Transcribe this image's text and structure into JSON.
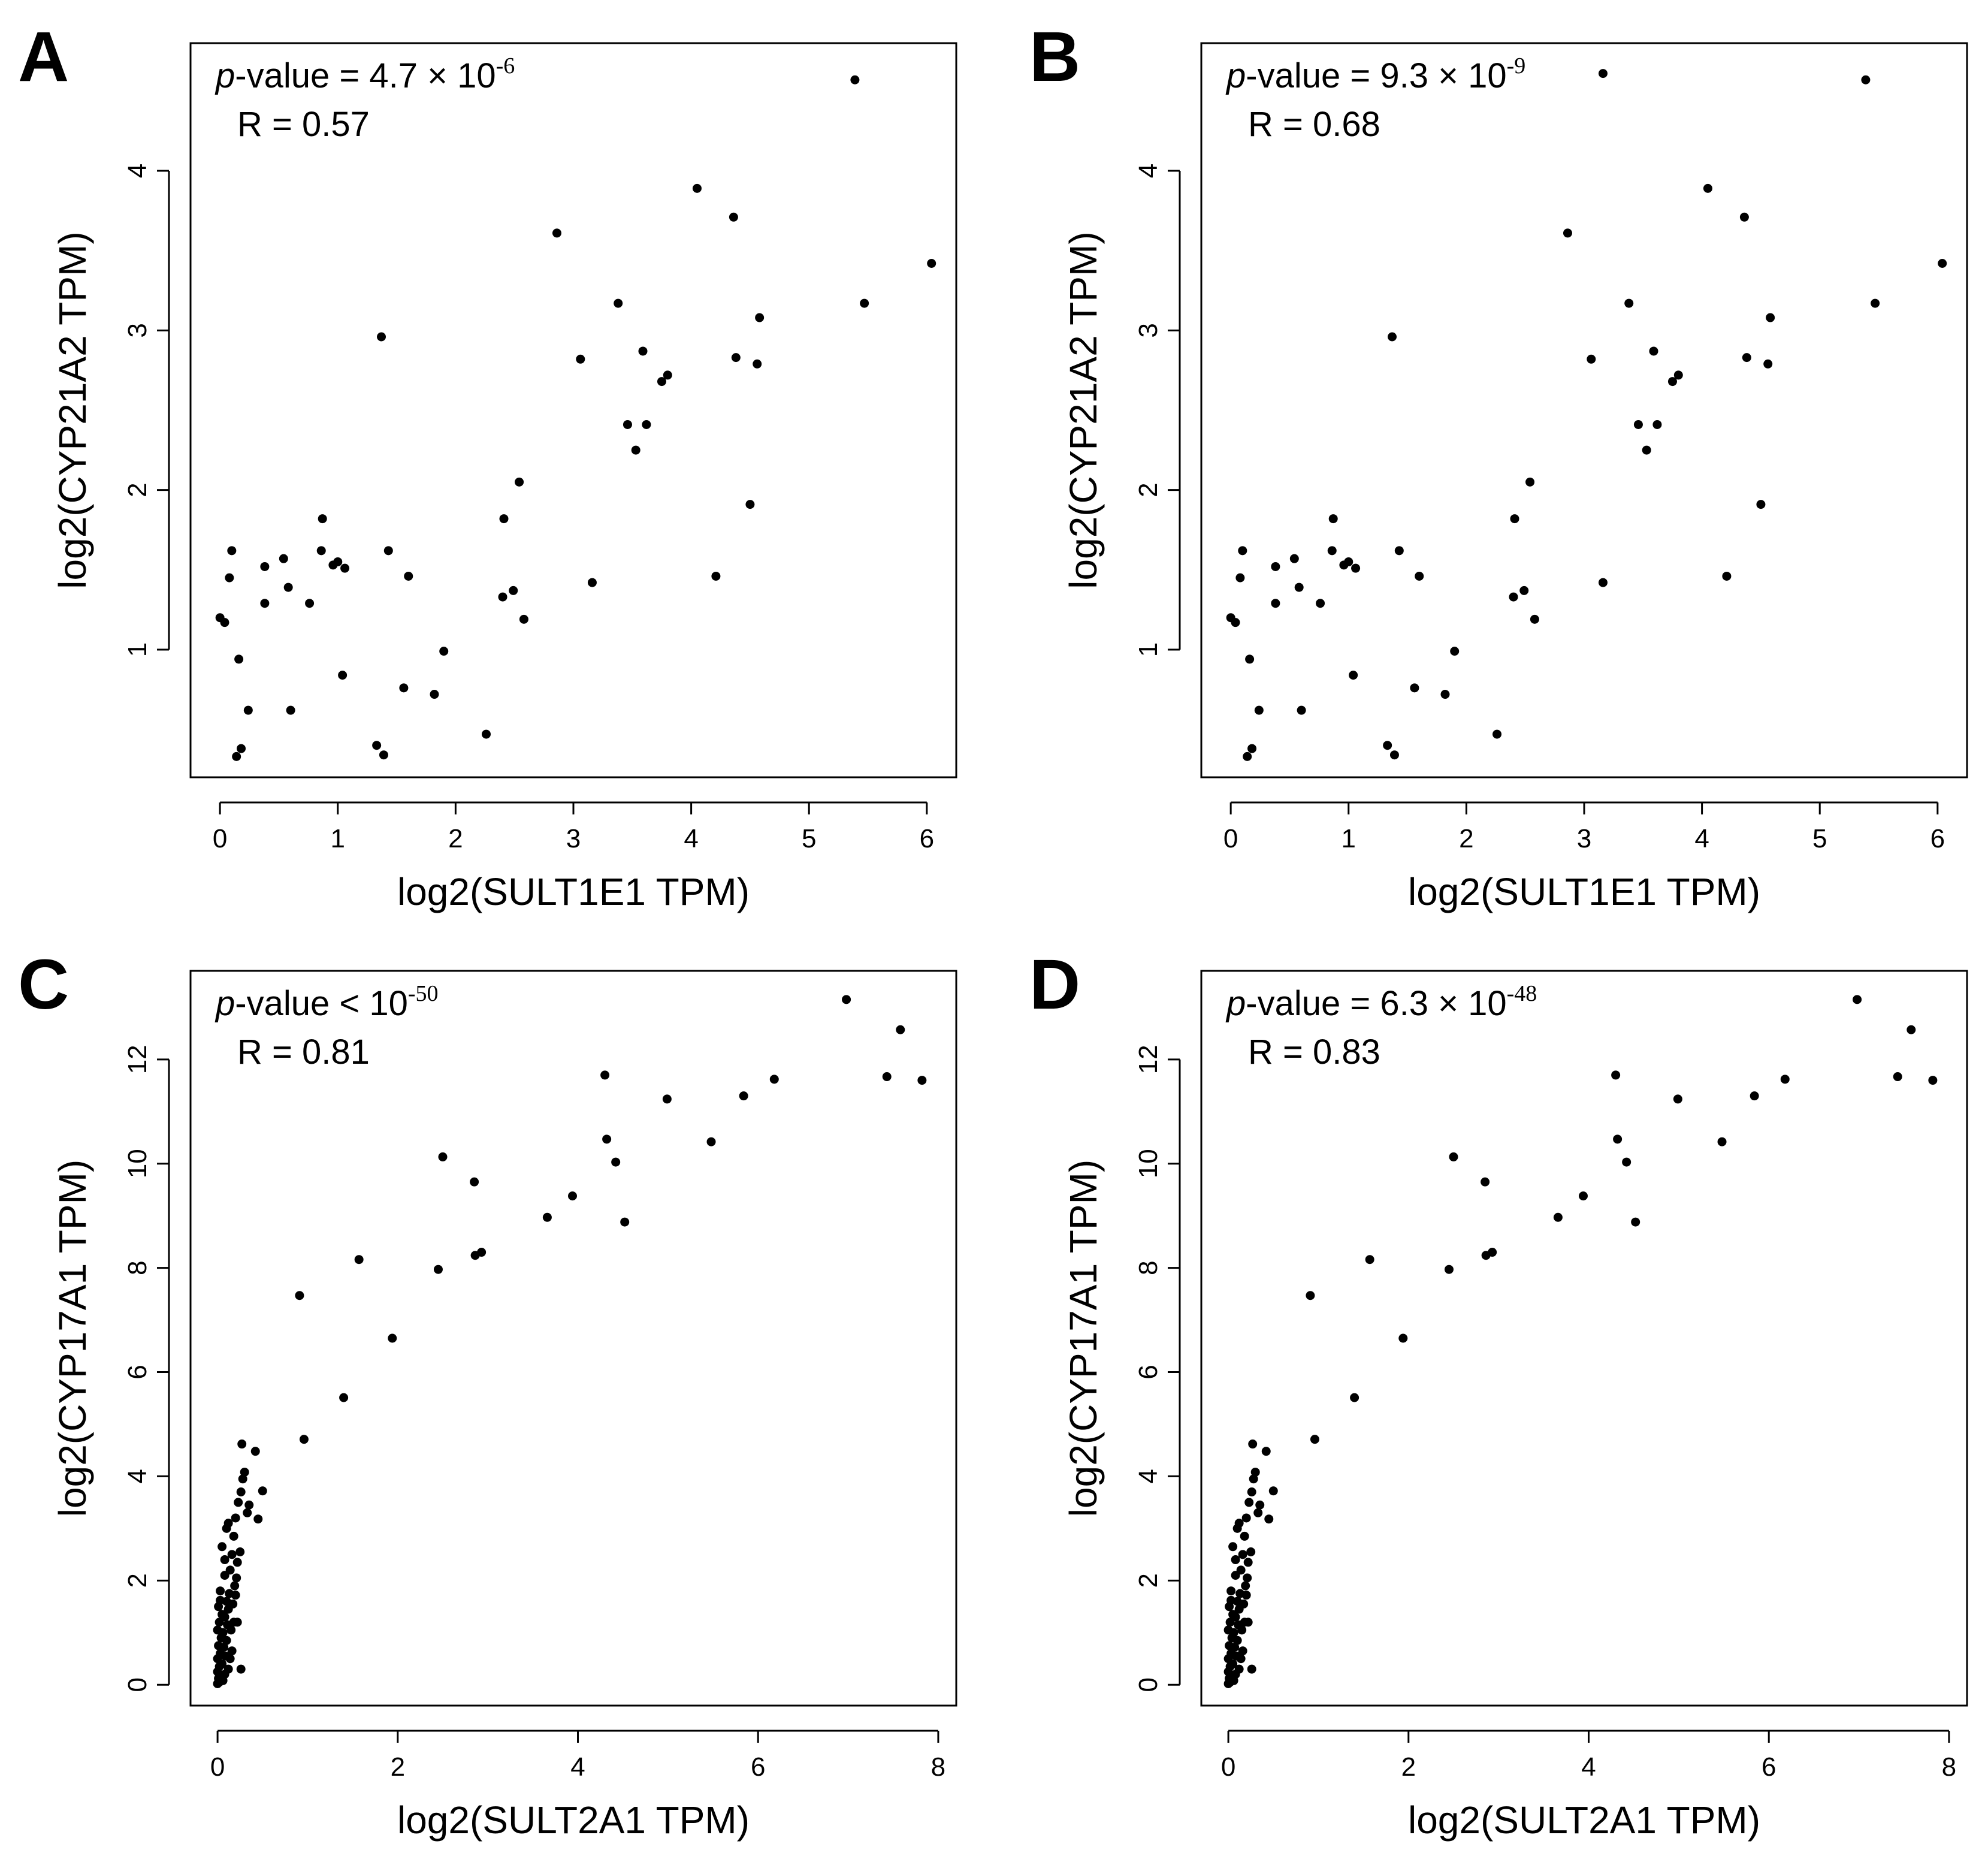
{
  "figure": {
    "background": "#ffffff",
    "point_color": "#000000"
  },
  "chart_data": [
    {
      "panel": "A",
      "type": "scatter",
      "p_prefix": "p",
      "p_rest": "-value = 4.7 × 10",
      "p_exp": "-6",
      "r_label": "R = 0.57",
      "xlabel": "log2(SULT1E1 TPM)",
      "ylabel": "log2(CYP21A2 TPM)",
      "xlim": [
        -0.25,
        6.25
      ],
      "ylim": [
        0.2,
        4.8
      ],
      "xticks": [
        "0",
        "1",
        "2",
        "3",
        "4",
        "5",
        "6"
      ],
      "yticks": [
        "1",
        "2",
        "3",
        "4"
      ],
      "points": [
        [
          0.0,
          1.2
        ],
        [
          0.04,
          1.17
        ],
        [
          0.08,
          1.45
        ],
        [
          0.1,
          1.62
        ],
        [
          0.14,
          0.33
        ],
        [
          0.16,
          0.94
        ],
        [
          0.18,
          0.38
        ],
        [
          0.24,
          0.62
        ],
        [
          0.38,
          1.52
        ],
        [
          0.38,
          1.29
        ],
        [
          0.54,
          1.57
        ],
        [
          0.58,
          1.39
        ],
        [
          0.6,
          0.62
        ],
        [
          0.76,
          1.29
        ],
        [
          0.86,
          1.62
        ],
        [
          0.87,
          1.82
        ],
        [
          0.96,
          1.53
        ],
        [
          1.0,
          1.55
        ],
        [
          1.04,
          0.84
        ],
        [
          1.06,
          1.51
        ],
        [
          1.33,
          0.4
        ],
        [
          1.37,
          2.96
        ],
        [
          1.39,
          0.34
        ],
        [
          1.43,
          1.62
        ],
        [
          1.56,
          0.76
        ],
        [
          1.6,
          1.46
        ],
        [
          1.82,
          0.72
        ],
        [
          1.9,
          0.99
        ],
        [
          2.26,
          0.47
        ],
        [
          2.4,
          1.33
        ],
        [
          2.41,
          1.82
        ],
        [
          2.49,
          1.37
        ],
        [
          2.54,
          2.05
        ],
        [
          2.58,
          1.19
        ],
        [
          2.86,
          3.61
        ],
        [
          3.06,
          2.82
        ],
        [
          3.16,
          1.42
        ],
        [
          3.38,
          3.17
        ],
        [
          3.46,
          2.41
        ],
        [
          3.53,
          2.25
        ],
        [
          3.59,
          2.87
        ],
        [
          3.62,
          2.41
        ],
        [
          3.75,
          2.68
        ],
        [
          3.8,
          2.72
        ],
        [
          4.05,
          3.89
        ],
        [
          4.21,
          1.46
        ],
        [
          4.36,
          3.71
        ],
        [
          4.38,
          2.83
        ],
        [
          4.5,
          1.91
        ],
        [
          4.56,
          2.79
        ],
        [
          4.58,
          3.08
        ],
        [
          5.39,
          4.57
        ],
        [
          5.47,
          3.17
        ],
        [
          6.04,
          3.42
        ]
      ]
    },
    {
      "panel": "B",
      "type": "scatter",
      "p_prefix": "p",
      "p_rest": "-value = 9.3 × 10",
      "p_exp": "-9",
      "r_label": "R = 0.68",
      "xlabel": "log2(SULT1E1 TPM)",
      "ylabel": "log2(CYP21A2 TPM)",
      "xlim": [
        -0.25,
        6.25
      ],
      "ylim": [
        0.2,
        4.8
      ],
      "xticks": [
        "0",
        "1",
        "2",
        "3",
        "4",
        "5",
        "6"
      ],
      "yticks": [
        "1",
        "2",
        "3",
        "4"
      ],
      "points": [
        [
          0.0,
          1.2
        ],
        [
          0.04,
          1.17
        ],
        [
          0.08,
          1.45
        ],
        [
          0.1,
          1.62
        ],
        [
          0.14,
          0.33
        ],
        [
          0.16,
          0.94
        ],
        [
          0.18,
          0.38
        ],
        [
          0.24,
          0.62
        ],
        [
          0.38,
          1.52
        ],
        [
          0.38,
          1.29
        ],
        [
          0.54,
          1.57
        ],
        [
          0.58,
          1.39
        ],
        [
          0.6,
          0.62
        ],
        [
          0.76,
          1.29
        ],
        [
          0.86,
          1.62
        ],
        [
          0.87,
          1.82
        ],
        [
          0.96,
          1.53
        ],
        [
          1.0,
          1.55
        ],
        [
          1.04,
          0.84
        ],
        [
          1.06,
          1.51
        ],
        [
          1.33,
          0.4
        ],
        [
          1.37,
          2.96
        ],
        [
          1.39,
          0.34
        ],
        [
          1.43,
          1.62
        ],
        [
          1.56,
          0.76
        ],
        [
          1.6,
          1.46
        ],
        [
          1.82,
          0.72
        ],
        [
          1.9,
          0.99
        ],
        [
          2.26,
          0.47
        ],
        [
          2.4,
          1.33
        ],
        [
          2.41,
          1.82
        ],
        [
          2.49,
          1.37
        ],
        [
          2.54,
          2.05
        ],
        [
          2.58,
          1.19
        ],
        [
          2.86,
          3.61
        ],
        [
          3.06,
          2.82
        ],
        [
          3.16,
          1.42
        ],
        [
          3.16,
          4.61
        ],
        [
          3.38,
          3.17
        ],
        [
          3.46,
          2.41
        ],
        [
          3.53,
          2.25
        ],
        [
          3.59,
          2.87
        ],
        [
          3.62,
          2.41
        ],
        [
          3.75,
          2.68
        ],
        [
          3.8,
          2.72
        ],
        [
          4.05,
          3.89
        ],
        [
          4.21,
          1.46
        ],
        [
          4.36,
          3.71
        ],
        [
          4.38,
          2.83
        ],
        [
          4.5,
          1.91
        ],
        [
          4.56,
          2.79
        ],
        [
          4.58,
          3.08
        ],
        [
          5.39,
          4.57
        ],
        [
          5.47,
          3.17
        ],
        [
          6.04,
          3.42
        ]
      ]
    },
    {
      "panel": "C",
      "type": "scatter",
      "p_prefix": "p",
      "p_rest": "-value < 10",
      "p_exp": "-50",
      "r_label": "R = 0.81",
      "xlabel": "log2(SULT2A1 TPM)",
      "ylabel": "log2(CYP17A1 TPM)",
      "xlim": [
        -0.3,
        8.2
      ],
      "ylim": [
        -0.4,
        13.7
      ],
      "xticks": [
        "0",
        "2",
        "4",
        "6",
        "8"
      ],
      "yticks": [
        "0",
        "2",
        "4",
        "6",
        "8",
        "10",
        "12"
      ],
      "points": [
        [
          0.0,
          0.02
        ],
        [
          0.01,
          0.12
        ],
        [
          0.0,
          0.25
        ],
        [
          0.02,
          0.35
        ],
        [
          0.0,
          0.5
        ],
        [
          0.03,
          0.6
        ],
        [
          0.01,
          0.75
        ],
        [
          0.04,
          0.9
        ],
        [
          0.0,
          1.05
        ],
        [
          0.02,
          1.2
        ],
        [
          0.05,
          1.35
        ],
        [
          0.01,
          1.5
        ],
        [
          0.03,
          1.62
        ],
        [
          0.06,
          0.08
        ],
        [
          0.08,
          0.2
        ],
        [
          0.05,
          0.4
        ],
        [
          0.09,
          0.55
        ],
        [
          0.07,
          0.72
        ],
        [
          0.1,
          0.85
        ],
        [
          0.06,
          1.0
        ],
        [
          0.11,
          1.15
        ],
        [
          0.08,
          1.3
        ],
        [
          0.12,
          1.45
        ],
        [
          0.1,
          1.6
        ],
        [
          0.13,
          1.75
        ],
        [
          0.02,
          0.05
        ],
        [
          0.04,
          0.18
        ],
        [
          0.12,
          0.3
        ],
        [
          0.14,
          0.5
        ],
        [
          0.16,
          0.65
        ],
        [
          0.15,
          1.05
        ],
        [
          0.18,
          1.2
        ],
        [
          0.17,
          1.55
        ],
        [
          0.2,
          1.72
        ],
        [
          0.19,
          1.9
        ],
        [
          0.21,
          2.05
        ],
        [
          0.22,
          2.35
        ],
        [
          0.25,
          2.55
        ],
        [
          0.18,
          2.85
        ],
        [
          0.2,
          3.2
        ],
        [
          0.23,
          3.5
        ],
        [
          0.26,
          3.7
        ],
        [
          0.28,
          3.95
        ],
        [
          0.3,
          4.08
        ],
        [
          0.27,
          4.62
        ],
        [
          0.33,
          3.3
        ],
        [
          0.35,
          3.45
        ],
        [
          0.42,
          4.48
        ],
        [
          0.45,
          3.18
        ],
        [
          0.5,
          3.72
        ],
        [
          0.05,
          2.65
        ],
        [
          0.08,
          2.4
        ],
        [
          0.1,
          3.0
        ],
        [
          0.12,
          3.1
        ],
        [
          0.14,
          2.2
        ],
        [
          0.16,
          2.5
        ],
        [
          0.22,
          1.2
        ],
        [
          0.26,
          0.3
        ],
        [
          0.08,
          2.1
        ],
        [
          0.03,
          1.8
        ],
        [
          0.91,
          7.47
        ],
        [
          0.96,
          4.71
        ],
        [
          1.4,
          5.51
        ],
        [
          1.57,
          8.16
        ],
        [
          1.94,
          6.65
        ],
        [
          2.45,
          7.97
        ],
        [
          2.5,
          10.13
        ],
        [
          2.85,
          9.65
        ],
        [
          2.86,
          8.24
        ],
        [
          2.93,
          8.3
        ],
        [
          3.66,
          8.97
        ],
        [
          3.94,
          9.38
        ],
        [
          4.3,
          11.7
        ],
        [
          4.32,
          10.47
        ],
        [
          4.42,
          10.03
        ],
        [
          4.52,
          8.88
        ],
        [
          4.99,
          11.24
        ],
        [
          5.48,
          10.42
        ],
        [
          5.84,
          11.3
        ],
        [
          6.18,
          11.62
        ],
        [
          6.98,
          13.15
        ],
        [
          7.43,
          11.67
        ],
        [
          7.58,
          12.57
        ],
        [
          7.82,
          11.6
        ]
      ]
    },
    {
      "panel": "D",
      "type": "scatter",
      "p_prefix": "p",
      "p_rest": "-value = 6.3 × 10",
      "p_exp": "-48",
      "r_label": "R = 0.83",
      "xlabel": "log2(SULT2A1 TPM)",
      "ylabel": "log2(CYP17A1 TPM)",
      "xlim": [
        -0.3,
        8.2
      ],
      "ylim": [
        -0.4,
        13.7
      ],
      "xticks": [
        "0",
        "2",
        "4",
        "6",
        "8"
      ],
      "yticks": [
        "0",
        "2",
        "4",
        "6",
        "8",
        "10",
        "12"
      ],
      "points": [
        [
          0.0,
          0.02
        ],
        [
          0.01,
          0.12
        ],
        [
          0.0,
          0.25
        ],
        [
          0.02,
          0.35
        ],
        [
          0.0,
          0.5
        ],
        [
          0.03,
          0.6
        ],
        [
          0.01,
          0.75
        ],
        [
          0.04,
          0.9
        ],
        [
          0.0,
          1.05
        ],
        [
          0.02,
          1.2
        ],
        [
          0.05,
          1.35
        ],
        [
          0.01,
          1.5
        ],
        [
          0.03,
          1.62
        ],
        [
          0.06,
          0.08
        ],
        [
          0.08,
          0.2
        ],
        [
          0.05,
          0.4
        ],
        [
          0.09,
          0.55
        ],
        [
          0.07,
          0.72
        ],
        [
          0.1,
          0.85
        ],
        [
          0.06,
          1.0
        ],
        [
          0.11,
          1.15
        ],
        [
          0.08,
          1.3
        ],
        [
          0.12,
          1.45
        ],
        [
          0.1,
          1.6
        ],
        [
          0.13,
          1.75
        ],
        [
          0.02,
          0.05
        ],
        [
          0.04,
          0.18
        ],
        [
          0.12,
          0.3
        ],
        [
          0.14,
          0.5
        ],
        [
          0.16,
          0.65
        ],
        [
          0.15,
          1.05
        ],
        [
          0.18,
          1.2
        ],
        [
          0.17,
          1.55
        ],
        [
          0.2,
          1.72
        ],
        [
          0.19,
          1.9
        ],
        [
          0.21,
          2.05
        ],
        [
          0.22,
          2.35
        ],
        [
          0.25,
          2.55
        ],
        [
          0.18,
          2.85
        ],
        [
          0.2,
          3.2
        ],
        [
          0.23,
          3.5
        ],
        [
          0.26,
          3.7
        ],
        [
          0.28,
          3.95
        ],
        [
          0.3,
          4.08
        ],
        [
          0.27,
          4.62
        ],
        [
          0.33,
          3.3
        ],
        [
          0.35,
          3.45
        ],
        [
          0.42,
          4.48
        ],
        [
          0.45,
          3.18
        ],
        [
          0.5,
          3.72
        ],
        [
          0.05,
          2.65
        ],
        [
          0.08,
          2.4
        ],
        [
          0.1,
          3.0
        ],
        [
          0.12,
          3.1
        ],
        [
          0.14,
          2.2
        ],
        [
          0.16,
          2.5
        ],
        [
          0.22,
          1.2
        ],
        [
          0.26,
          0.3
        ],
        [
          0.08,
          2.1
        ],
        [
          0.03,
          1.8
        ],
        [
          0.91,
          7.47
        ],
        [
          0.96,
          4.71
        ],
        [
          1.4,
          5.51
        ],
        [
          1.57,
          8.16
        ],
        [
          1.94,
          6.65
        ],
        [
          2.45,
          7.97
        ],
        [
          2.5,
          10.13
        ],
        [
          2.85,
          9.65
        ],
        [
          2.86,
          8.24
        ],
        [
          2.93,
          8.3
        ],
        [
          3.66,
          8.97
        ],
        [
          3.94,
          9.38
        ],
        [
          4.3,
          11.7
        ],
        [
          4.32,
          10.47
        ],
        [
          4.42,
          10.03
        ],
        [
          4.52,
          8.88
        ],
        [
          4.99,
          11.24
        ],
        [
          5.48,
          10.42
        ],
        [
          5.84,
          11.3
        ],
        [
          6.18,
          11.62
        ],
        [
          6.98,
          13.15
        ],
        [
          7.43,
          11.67
        ],
        [
          7.58,
          12.57
        ],
        [
          7.82,
          11.6
        ]
      ]
    }
  ]
}
